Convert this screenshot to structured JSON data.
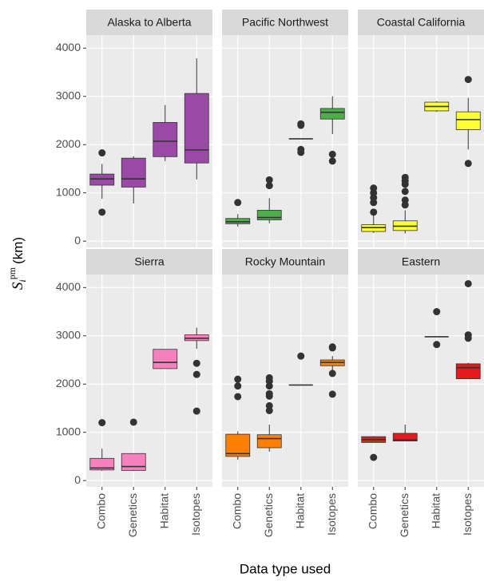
{
  "x_label": "Data type used",
  "y_label": {
    "symbol": "S",
    "sub": "i",
    "sup": "pm",
    "unit": "(km)"
  },
  "chart_data": [
    {
      "type": "box",
      "title": "Alaska to Alberta",
      "color": "#9a4aa6",
      "categories": [
        "Combo",
        "Genetics",
        "Habitat",
        "Isotopes"
      ],
      "boxes": [
        {
          "low": 880,
          "q1": 1160,
          "median": 1290,
          "q3": 1390,
          "high": 1600,
          "outliers": [
            600,
            1830
          ]
        },
        {
          "low": 780,
          "q1": 1120,
          "median": 1290,
          "q3": 1720,
          "high": 1760,
          "outliers": []
        },
        {
          "low": 1660,
          "q1": 1750,
          "median": 2070,
          "q3": 2460,
          "high": 2820,
          "outliers": []
        },
        {
          "low": 1280,
          "q1": 1620,
          "median": 1890,
          "q3": 3060,
          "high": 3790,
          "outliers": []
        }
      ],
      "ylim": [
        -130,
        4270
      ],
      "yticks": [
        0,
        1000,
        2000,
        3000,
        4000
      ]
    },
    {
      "type": "box",
      "title": "Pacific Northwest",
      "color": "#4daf4a",
      "categories": [
        "Combo",
        "Genetics",
        "Habitat",
        "Isotopes"
      ],
      "boxes": [
        {
          "low": 300,
          "q1": 360,
          "median": 400,
          "q3": 470,
          "high": 560,
          "outliers": [
            800
          ]
        },
        {
          "low": 370,
          "q1": 440,
          "median": 490,
          "q3": 640,
          "high": 890,
          "outliers": [
            1150,
            1270
          ]
        },
        {
          "low": 2120,
          "q1": 2120,
          "median": 2120,
          "q3": 2120,
          "high": 2120,
          "outliers": [
            1840,
            1900,
            2400,
            2430
          ]
        },
        {
          "low": 2220,
          "q1": 2530,
          "median": 2670,
          "q3": 2750,
          "high": 3000,
          "outliers": [
            1660,
            1800
          ]
        }
      ],
      "ylim": [
        -130,
        4270
      ],
      "yticks": [
        0,
        1000,
        2000,
        3000,
        4000
      ]
    },
    {
      "type": "box",
      "title": "Coastal California",
      "color": "#ffff33",
      "categories": [
        "Combo",
        "Genetics",
        "Habitat",
        "Isotopes"
      ],
      "boxes": [
        {
          "low": 170,
          "q1": 200,
          "median": 280,
          "q3": 340,
          "high": 560,
          "outliers": [
            600,
            800,
            900,
            1000,
            1100
          ]
        },
        {
          "low": 160,
          "q1": 220,
          "median": 310,
          "q3": 420,
          "high": 640,
          "outliers": [
            750,
            850,
            1030,
            1180,
            1250,
            1320
          ]
        },
        {
          "low": 2680,
          "q1": 2700,
          "median": 2790,
          "q3": 2880,
          "high": 2900,
          "outliers": []
        },
        {
          "low": 1900,
          "q1": 2310,
          "median": 2520,
          "q3": 2680,
          "high": 2970,
          "outliers": [
            1610,
            3350
          ]
        }
      ],
      "ylim": [
        -130,
        4270
      ],
      "yticks": [
        0,
        1000,
        2000,
        3000,
        4000
      ]
    },
    {
      "type": "box",
      "title": "Sierra",
      "color": "#f781bf",
      "categories": [
        "Combo",
        "Genetics",
        "Habitat",
        "Isotopes"
      ],
      "boxes": [
        {
          "low": 200,
          "q1": 220,
          "median": 260,
          "q3": 460,
          "high": 660,
          "outliers": [
            1200
          ]
        },
        {
          "low": 200,
          "q1": 210,
          "median": 290,
          "q3": 560,
          "high": 560,
          "outliers": [
            1210
          ]
        },
        {
          "low": 2320,
          "q1": 2320,
          "median": 2450,
          "q3": 2720,
          "high": 2720,
          "outliers": []
        },
        {
          "low": 2730,
          "q1": 2900,
          "median": 2950,
          "q3": 3020,
          "high": 3170,
          "outliers": [
            1440,
            2200,
            2430
          ]
        }
      ],
      "ylim": [
        -130,
        4270
      ],
      "yticks": [
        0,
        1000,
        2000,
        3000,
        4000
      ]
    },
    {
      "type": "box",
      "title": "Rocky Mountain",
      "color": "#ff7f00",
      "categories": [
        "Combo",
        "Genetics",
        "Habitat",
        "Isotopes"
      ],
      "boxes": [
        {
          "low": 430,
          "q1": 500,
          "median": 560,
          "q3": 960,
          "high": 1020,
          "outliers": [
            1740,
            1960,
            2100
          ]
        },
        {
          "low": 600,
          "q1": 680,
          "median": 870,
          "q3": 950,
          "high": 1160,
          "outliers": [
            1450,
            1550,
            1750,
            1800,
            1960,
            2060,
            2130
          ]
        },
        {
          "low": 1980,
          "q1": 1980,
          "median": 1980,
          "q3": 1980,
          "high": 1980,
          "outliers": [
            2580
          ]
        },
        {
          "low": 2240,
          "q1": 2380,
          "median": 2450,
          "q3": 2500,
          "high": 2580,
          "outliers": [
            1790,
            2220,
            2750,
            2770
          ]
        }
      ],
      "ylim": [
        -130,
        4270
      ],
      "yticks": [
        0,
        1000,
        2000,
        3000,
        4000
      ]
    },
    {
      "type": "box",
      "title": "Eastern",
      "color": "#e41a1c",
      "categories": [
        "Combo",
        "Genetics",
        "Habitat",
        "Isotopes"
      ],
      "boxes": [
        {
          "low": 790,
          "q1": 790,
          "median": 850,
          "q3": 910,
          "high": 920,
          "outliers": [
            480
          ]
        },
        {
          "low": 820,
          "q1": 820,
          "median": 840,
          "q3": 980,
          "high": 1160,
          "outliers": []
        },
        {
          "low": 2980,
          "q1": 2980,
          "median": 2980,
          "q3": 2980,
          "high": 2980,
          "outliers": [
            2820,
            3500
          ]
        },
        {
          "low": 2110,
          "q1": 2110,
          "median": 2340,
          "q3": 2420,
          "high": 2440,
          "outliers": [
            2950,
            3020,
            4080
          ]
        }
      ],
      "ylim": [
        -130,
        4270
      ],
      "yticks": [
        0,
        1000,
        2000,
        3000,
        4000
      ]
    }
  ]
}
